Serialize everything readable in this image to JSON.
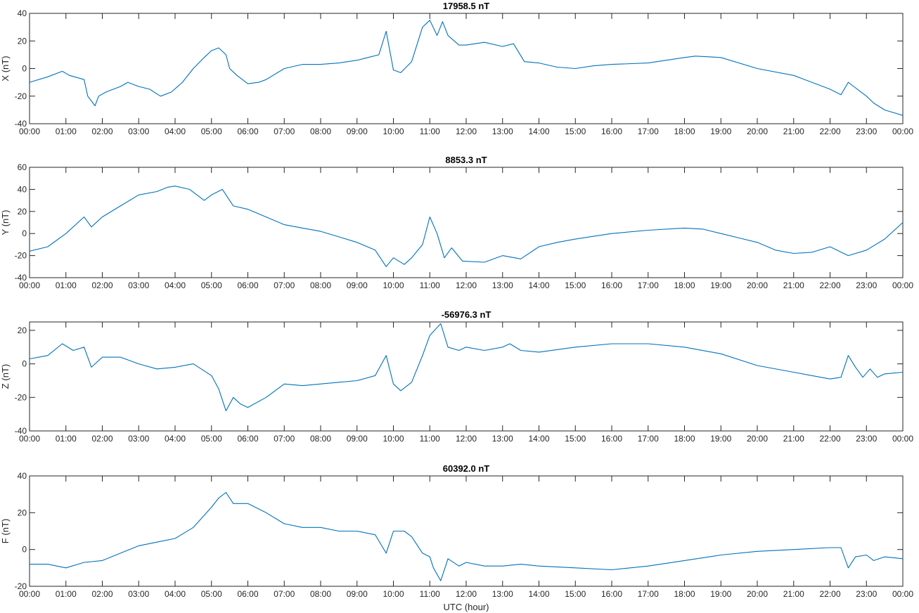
{
  "chart_data": [
    {
      "type": "line",
      "title": "17958.5 nT",
      "xlabel": "",
      "ylabel": "X (nT)",
      "ylim": [
        -40,
        40
      ],
      "yticks": [
        -40,
        -20,
        0,
        20,
        40
      ],
      "xlim_hours": [
        0,
        24
      ],
      "x_tick_labels": [
        "00:00",
        "01:00",
        "02:00",
        "03:00",
        "04:00",
        "05:00",
        "06:00",
        "07:00",
        "08:00",
        "09:00",
        "10:00",
        "11:00",
        "12:00",
        "13:00",
        "14:00",
        "15:00",
        "16:00",
        "17:00",
        "18:00",
        "19:00",
        "20:00",
        "21:00",
        "22:00",
        "23:00",
        "00:00"
      ],
      "grid": false,
      "color": "#0072BD",
      "x": [
        0.0,
        0.5,
        0.9,
        1.1,
        1.5,
        1.6,
        1.8,
        1.9,
        2.1,
        2.5,
        2.7,
        3.0,
        3.3,
        3.6,
        3.9,
        4.2,
        4.5,
        4.8,
        5.0,
        5.2,
        5.4,
        5.5,
        5.7,
        6.0,
        6.3,
        6.5,
        7.0,
        7.5,
        8.0,
        8.5,
        9.0,
        9.3,
        9.6,
        9.8,
        10.0,
        10.2,
        10.5,
        10.8,
        11.0,
        11.2,
        11.35,
        11.5,
        11.8,
        12.0,
        12.5,
        13.0,
        13.3,
        13.6,
        14.0,
        14.5,
        15.0,
        15.5,
        16.0,
        17.0,
        18.0,
        18.3,
        19.0,
        20.0,
        21.0,
        22.0,
        22.3,
        22.5,
        22.7,
        23.0,
        23.2,
        23.5,
        24.0
      ],
      "y": [
        -10,
        -6,
        -2,
        -5,
        -8,
        -20,
        -27,
        -20,
        -17,
        -13,
        -10,
        -13,
        -15,
        -20,
        -17,
        -10,
        0,
        8,
        13,
        15,
        10,
        0,
        -5,
        -11,
        -10,
        -8,
        0,
        3,
        3,
        4,
        6,
        8,
        10,
        27,
        -1,
        -3,
        5,
        30,
        35,
        24,
        34,
        24,
        17,
        17,
        19,
        16,
        18,
        5,
        4,
        1,
        0,
        2,
        3,
        4,
        8,
        9,
        8,
        0,
        -5,
        -15,
        -19,
        -10,
        -14,
        -20,
        -25,
        -30,
        -34
      ]
    },
    {
      "type": "line",
      "title": "8853.3 nT",
      "xlabel": "",
      "ylabel": "Y (nT)",
      "ylim": [
        -40,
        60
      ],
      "yticks": [
        -40,
        -20,
        0,
        20,
        40,
        60
      ],
      "xlim_hours": [
        0,
        24
      ],
      "x_tick_labels": [
        "00:00",
        "01:00",
        "02:00",
        "03:00",
        "04:00",
        "05:00",
        "06:00",
        "07:00",
        "08:00",
        "09:00",
        "10:00",
        "11:00",
        "12:00",
        "13:00",
        "14:00",
        "15:00",
        "16:00",
        "17:00",
        "18:00",
        "19:00",
        "20:00",
        "21:00",
        "22:00",
        "23:00",
        "00:00"
      ],
      "grid": false,
      "color": "#0072BD",
      "x": [
        0.0,
        0.5,
        1.0,
        1.5,
        1.7,
        2.0,
        2.5,
        3.0,
        3.5,
        3.8,
        4.0,
        4.4,
        4.8,
        5.0,
        5.3,
        5.6,
        6.0,
        6.5,
        7.0,
        7.5,
        8.0,
        8.5,
        9.0,
        9.5,
        9.8,
        10.0,
        10.3,
        10.5,
        10.8,
        11.0,
        11.2,
        11.4,
        11.6,
        11.9,
        12.5,
        13.0,
        13.5,
        14.0,
        14.5,
        15.0,
        16.0,
        17.0,
        18.0,
        18.5,
        19.0,
        19.5,
        20.0,
        20.5,
        21.0,
        21.5,
        22.0,
        22.5,
        23.0,
        23.5,
        24.0
      ],
      "y": [
        -16,
        -12,
        0,
        15,
        6,
        15,
        25,
        35,
        38,
        42,
        43,
        40,
        30,
        35,
        40,
        25,
        22,
        15,
        8,
        5,
        2,
        -3,
        -8,
        -15,
        -30,
        -22,
        -28,
        -22,
        -10,
        15,
        0,
        -22,
        -13,
        -25,
        -26,
        -20,
        -23,
        -12,
        -8,
        -5,
        0,
        3,
        5,
        4,
        0,
        -4,
        -8,
        -15,
        -18,
        -17,
        -12,
        -20,
        -15,
        -5,
        10
      ]
    },
    {
      "type": "line",
      "title": "-56976.3 nT",
      "xlabel": "",
      "ylabel": "Z (nT)",
      "ylim": [
        -40,
        25
      ],
      "yticks": [
        -40,
        -20,
        0,
        20
      ],
      "xlim_hours": [
        0,
        24
      ],
      "x_tick_labels": [
        "00:00",
        "01:00",
        "02:00",
        "03:00",
        "04:00",
        "05:00",
        "06:00",
        "07:00",
        "08:00",
        "09:00",
        "10:00",
        "11:00",
        "12:00",
        "13:00",
        "14:00",
        "15:00",
        "16:00",
        "17:00",
        "18:00",
        "19:00",
        "20:00",
        "21:00",
        "22:00",
        "23:00",
        "00:00"
      ],
      "grid": false,
      "color": "#0072BD",
      "x": [
        0.0,
        0.5,
        0.9,
        1.2,
        1.5,
        1.7,
        2.0,
        2.5,
        3.0,
        3.5,
        4.0,
        4.5,
        5.0,
        5.2,
        5.4,
        5.6,
        5.8,
        6.0,
        6.5,
        7.0,
        7.5,
        8.0,
        8.5,
        9.0,
        9.5,
        9.8,
        10.0,
        10.2,
        10.5,
        10.8,
        11.0,
        11.3,
        11.5,
        11.8,
        12.0,
        12.5,
        13.0,
        13.2,
        13.5,
        14.0,
        15.0,
        16.0,
        17.0,
        18.0,
        19.0,
        20.0,
        21.0,
        22.0,
        22.3,
        22.5,
        22.7,
        22.9,
        23.1,
        23.3,
        23.5,
        24.0
      ],
      "y": [
        3,
        5,
        12,
        8,
        10,
        -2,
        4,
        4,
        0,
        -3,
        -2,
        0,
        -7,
        -15,
        -28,
        -20,
        -24,
        -26,
        -20,
        -12,
        -13,
        -12,
        -11,
        -10,
        -7,
        5,
        -12,
        -16,
        -11,
        5,
        17,
        24,
        10,
        8,
        10,
        8,
        10,
        12,
        8,
        7,
        10,
        12,
        12,
        10,
        6,
        -1,
        -5,
        -9,
        -8,
        5,
        -2,
        -8,
        -3,
        -8,
        -6,
        -5
      ]
    },
    {
      "type": "line",
      "title": "60392.0 nT",
      "xlabel": "UTC (hour)",
      "ylabel": "F (nT)",
      "ylim": [
        -20,
        40
      ],
      "yticks": [
        -20,
        0,
        20,
        40
      ],
      "xlim_hours": [
        0,
        24
      ],
      "x_tick_labels": [
        "00:00",
        "01:00",
        "02:00",
        "03:00",
        "04:00",
        "05:00",
        "06:00",
        "07:00",
        "08:00",
        "09:00",
        "10:00",
        "11:00",
        "12:00",
        "13:00",
        "14:00",
        "15:00",
        "16:00",
        "17:00",
        "18:00",
        "19:00",
        "20:00",
        "21:00",
        "22:00",
        "23:00",
        "00:00"
      ],
      "grid": false,
      "color": "#0072BD",
      "x": [
        0.0,
        0.5,
        1.0,
        1.5,
        2.0,
        2.5,
        3.0,
        3.5,
        4.0,
        4.5,
        5.0,
        5.2,
        5.4,
        5.6,
        6.0,
        6.5,
        7.0,
        7.5,
        8.0,
        8.5,
        9.0,
        9.5,
        9.8,
        10.0,
        10.3,
        10.5,
        10.8,
        11.0,
        11.1,
        11.3,
        11.5,
        11.8,
        12.0,
        12.5,
        13.0,
        13.5,
        14.0,
        15.0,
        16.0,
        17.0,
        18.0,
        19.0,
        20.0,
        21.0,
        22.0,
        22.3,
        22.5,
        22.7,
        23.0,
        23.2,
        23.5,
        24.0
      ],
      "y": [
        -8,
        -8,
        -10,
        -7,
        -6,
        -2,
        2,
        4,
        6,
        12,
        23,
        28,
        31,
        25,
        25,
        20,
        14,
        12,
        12,
        10,
        10,
        8,
        -2,
        10,
        10,
        7,
        -2,
        -4,
        -10,
        -17,
        -5,
        -9,
        -7,
        -9,
        -9,
        -8,
        -9,
        -10,
        -11,
        -9,
        -6,
        -3,
        -1,
        0,
        1,
        1,
        -10,
        -4,
        -3,
        -6,
        -4,
        -5
      ]
    }
  ]
}
